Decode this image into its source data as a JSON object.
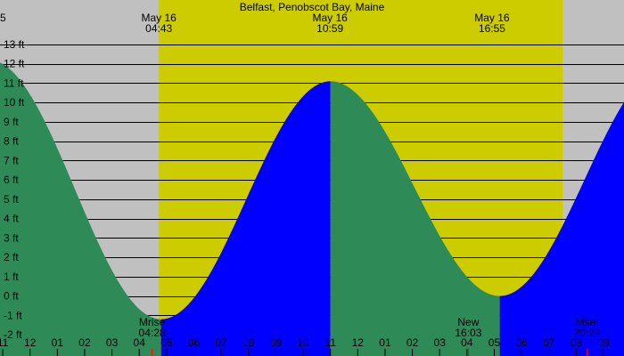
{
  "chart_data": {
    "type": "area",
    "title": "Belfast, Penobscot Bay, Maine",
    "xlabel": "",
    "ylabel": "",
    "unit": "ft",
    "x_range_hours": [
      -1.1,
      21.75
    ],
    "y_range_ft": [
      -3.1,
      15.3
    ],
    "y_ticks": [
      13,
      12,
      11,
      10,
      9,
      8,
      7,
      6,
      5,
      4,
      3,
      2,
      1,
      0,
      -1,
      -2
    ],
    "y_tick_labels": [
      "13 ft",
      "12 ft",
      "11 ft",
      "10 ft",
      "9 ft",
      "8 ft",
      "7 ft",
      "6 ft",
      "5 ft",
      "4 ft",
      "3 ft",
      "2 ft",
      "1 ft",
      "0 ft",
      "-1 ft",
      "-2 ft"
    ],
    "x_tick_hours": [
      -1,
      0,
      1,
      2,
      3,
      4,
      5,
      6,
      7,
      8,
      9,
      10,
      11,
      12,
      13,
      14,
      15,
      16,
      17,
      18,
      19,
      20,
      21
    ],
    "x_tick_labels": [
      "11",
      "12",
      "01",
      "02",
      "03",
      "04",
      "05",
      "06",
      "07",
      "08",
      "09",
      "10",
      "11",
      "12",
      "01",
      "02",
      "03",
      "04",
      "05",
      "06",
      "07",
      "08",
      "09"
    ],
    "day_periods": [
      {
        "start_hour": 4.7167,
        "end_hour": 19.5,
        "color": "#cccc00"
      }
    ],
    "tide_extrema": [
      {
        "hour": -1.5,
        "height_ft": 12.2,
        "kind": "high"
      },
      {
        "hour": 4.8,
        "height_ft": -1.2,
        "kind": "low"
      },
      {
        "hour": 11.0,
        "height_ft": 11.1,
        "kind": "high"
      },
      {
        "hour": 17.2,
        "height_ft": 0.0,
        "kind": "low"
      },
      {
        "hour": 23.4,
        "height_ft": 12.0,
        "kind": "high"
      }
    ],
    "tide_colors": {
      "falling": "#2e8b57",
      "rising": "#0000ff"
    },
    "top_annotations": [
      {
        "hour": 4.7167,
        "date": "May 16",
        "time": "04:43"
      },
      {
        "hour": 10.9833,
        "date": "May 16",
        "time": "10:59"
      },
      {
        "hour": 16.9167,
        "date": "May 16",
        "time": "16:55"
      }
    ],
    "left_edge_label": "5",
    "moon_events": [
      {
        "hour": 4.4667,
        "label": "Mrise",
        "time": "04:28"
      },
      {
        "hour": 16.05,
        "label": "New",
        "time": "16:03"
      },
      {
        "hour": 20.4,
        "label": "Mset",
        "time": "20:24"
      }
    ],
    "colors": {
      "night": "#c0c0c0",
      "day": "#cccc00",
      "grid": "#000000",
      "moon_marker": "#ff0000"
    }
  }
}
